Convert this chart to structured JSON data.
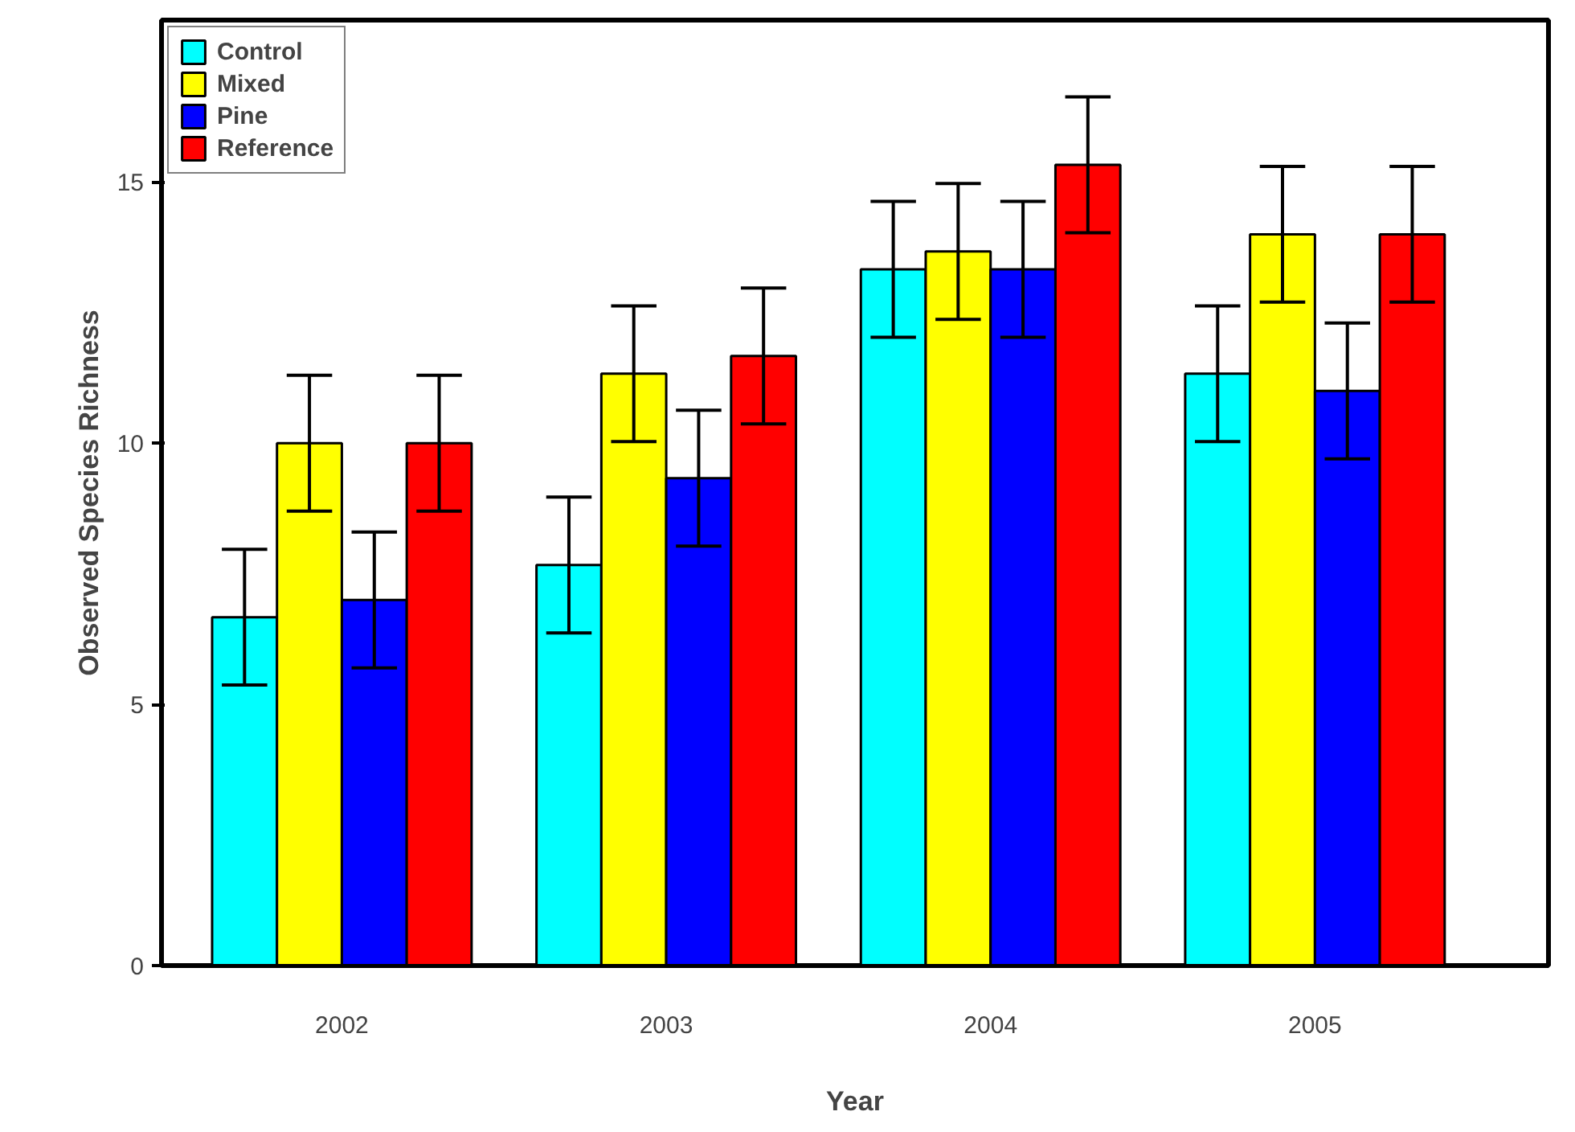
{
  "chart_data": {
    "type": "bar",
    "xlabel": "Year",
    "ylabel": "Observed Species Richness",
    "categories": [
      "2002",
      "2003",
      "2004",
      "2005"
    ],
    "series": [
      {
        "name": "Control",
        "color": "#00ffff",
        "values": [
          6.67,
          7.67,
          13.33,
          11.33
        ],
        "errors": [
          1.3,
          1.3,
          1.3,
          1.3
        ]
      },
      {
        "name": "Mixed",
        "color": "#ffff00",
        "values": [
          10,
          11.33,
          13.67,
          14
        ],
        "errors": [
          1.3,
          1.3,
          1.3,
          1.3
        ]
      },
      {
        "name": "Pine",
        "color": "#0000ff",
        "values": [
          7,
          9.33,
          13.33,
          11
        ],
        "errors": [
          1.3,
          1.3,
          1.3,
          1.3
        ]
      },
      {
        "name": "Reference",
        "color": "#ff0000",
        "values": [
          10,
          11.67,
          15.33,
          14
        ],
        "errors": [
          1.3,
          1.3,
          1.3,
          1.3
        ]
      }
    ],
    "ylim": [
      0,
      18.1
    ],
    "yticks": [
      0,
      5,
      10,
      15
    ],
    "grid": false,
    "legend": "top left"
  }
}
